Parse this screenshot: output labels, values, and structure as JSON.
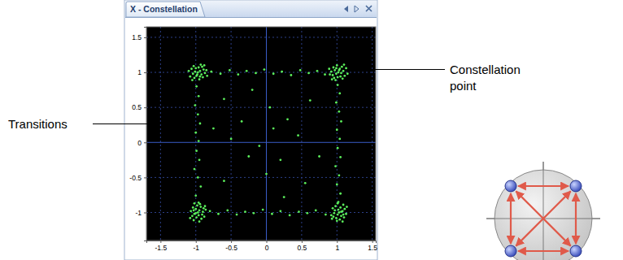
{
  "chart_data": {
    "type": "scatter",
    "title": "X - Constellation",
    "color": "#5cf05c",
    "grid": true,
    "xlim": [
      -1.7,
      1.55
    ],
    "ylim": [
      -1.4,
      1.65
    ],
    "xticks": [
      -1.5,
      -1,
      -0.5,
      0,
      0.5,
      1,
      1.5
    ],
    "yticks": [
      -1,
      -0.5,
      0,
      0.5,
      1,
      1.5
    ],
    "annotations": [
      {
        "text": [
          "Constellation",
          "point"
        ]
      },
      {
        "text": [
          "Transitions"
        ]
      }
    ],
    "x": [
      -0.97,
      -0.94,
      -1.01,
      -0.92,
      -0.99,
      -0.89,
      -1.04,
      -0.96,
      -1.0,
      -0.91,
      -1.06,
      -0.87,
      -1.02,
      -0.95,
      -0.85,
      -1.08,
      -0.93,
      -0.98,
      -0.9,
      -1.03,
      -0.84,
      -1.1,
      -0.94,
      -1.05,
      -0.88,
      1.02,
      0.99,
      1.06,
      0.97,
      1.04,
      0.94,
      1.09,
      1.01,
      1.05,
      0.96,
      1.11,
      0.92,
      1.07,
      1.0,
      0.9,
      1.13,
      0.98,
      1.03,
      0.95,
      1.08,
      0.89,
      1.15,
      0.99,
      1.1,
      0.93,
      -0.97,
      -0.95,
      -0.96,
      -1.0,
      -1.02,
      -0.93,
      -0.99,
      -0.9,
      -0.91,
      -0.89,
      -0.92,
      -0.98,
      -1.05,
      -1.07,
      -0.94,
      -1.03,
      -0.86,
      -1.0,
      -1.04,
      -0.88,
      -1.02,
      -0.95,
      -1.03,
      -1.08,
      -0.87,
      1.03,
      1.01,
      1.02,
      1.06,
      1.08,
      0.99,
      1.05,
      0.96,
      0.97,
      0.95,
      0.98,
      1.04,
      1.11,
      1.13,
      1.0,
      1.09,
      0.92,
      1.06,
      1.1,
      0.94,
      1.08,
      1.01,
      1.09,
      1.14,
      0.93,
      -0.78,
      -0.65,
      -0.52,
      -0.4,
      -0.28,
      -0.15,
      -0.03,
      0.1,
      0.22,
      0.35,
      0.48,
      0.6,
      0.72,
      0.83,
      -0.8,
      -0.68,
      -0.55,
      -0.42,
      -0.3,
      -0.18,
      -0.05,
      0.08,
      0.2,
      0.33,
      0.46,
      0.58,
      0.7,
      0.84,
      -0.99,
      -0.96,
      -1.01,
      -0.97,
      -0.94,
      -1.0,
      -0.96,
      -0.99,
      -0.95,
      -1.02,
      -0.97,
      -0.93,
      -1.0,
      -0.96,
      1.01,
      1.04,
      0.99,
      1.03,
      1.06,
      1.0,
      1.04,
      1.01,
      1.05,
      0.98,
      1.03,
      1.0,
      1.05,
      1.02,
      -0.6,
      -0.35,
      0.2,
      0.55,
      0.62,
      0.3,
      -0.25,
      -0.6,
      0.05,
      -0.5,
      0.45,
      0.0,
      -0.75,
      0.75,
      -0.2,
      0.25,
      0.1,
      -0.1
    ],
    "values": [
      1.0,
      1.02,
      1.01,
      0.97,
      0.95,
      1.04,
      0.98,
      1.07,
      1.06,
      1.08,
      1.05,
      0.99,
      0.92,
      0.9,
      1.03,
      0.94,
      1.11,
      0.97,
      0.93,
      1.09,
      0.95,
      1.02,
      0.94,
      0.89,
      1.1,
      1.0,
      0.98,
      0.99,
      1.03,
      1.05,
      0.96,
      1.02,
      0.93,
      0.94,
      0.92,
      0.95,
      1.01,
      1.08,
      1.1,
      0.97,
      1.06,
      0.89,
      1.03,
      1.07,
      0.91,
      1.05,
      0.98,
      1.06,
      1.11,
      0.9,
      -1.0,
      -0.97,
      -1.04,
      -0.95,
      -1.02,
      -0.92,
      -1.07,
      -0.99,
      -1.03,
      -0.94,
      -1.09,
      -0.9,
      -1.05,
      -0.98,
      -0.88,
      -1.11,
      -0.96,
      -1.01,
      -0.93,
      -1.06,
      -0.87,
      -1.13,
      -0.97,
      -1.08,
      -0.91,
      -1.0,
      -1.03,
      -0.96,
      -1.05,
      -0.98,
      -1.08,
      -0.93,
      -1.01,
      -0.97,
      -1.06,
      -0.91,
      -1.1,
      -0.95,
      -1.02,
      -1.12,
      -0.89,
      -1.04,
      -0.99,
      -1.07,
      -0.94,
      -1.13,
      -0.87,
      -1.03,
      -0.92,
      -1.09,
      1.01,
      0.98,
      1.03,
      0.97,
      1.02,
      0.99,
      1.04,
      0.98,
      1.01,
      0.96,
      1.03,
      0.99,
      1.02,
      0.97,
      -0.98,
      -1.02,
      -0.97,
      -1.03,
      -0.99,
      -1.01,
      -0.96,
      -1.02,
      -0.98,
      -1.04,
      -0.99,
      -1.01,
      -0.97,
      -1.03,
      0.8,
      0.66,
      0.53,
      0.4,
      0.27,
      0.14,
      0.02,
      -0.12,
      -0.25,
      -0.38,
      -0.5,
      -0.63,
      -0.76,
      -0.86,
      0.82,
      0.7,
      0.57,
      0.44,
      0.3,
      0.18,
      0.05,
      -0.08,
      -0.21,
      -0.34,
      -0.47,
      -0.6,
      -0.73,
      -0.85,
      0.62,
      0.3,
      -0.25,
      -0.58,
      0.6,
      0.33,
      -0.2,
      -0.55,
      0.5,
      0.05,
      0.1,
      -0.45,
      0.2,
      -0.2,
      0.75,
      -0.78,
      0.2,
      -0.05
    ]
  }
}
